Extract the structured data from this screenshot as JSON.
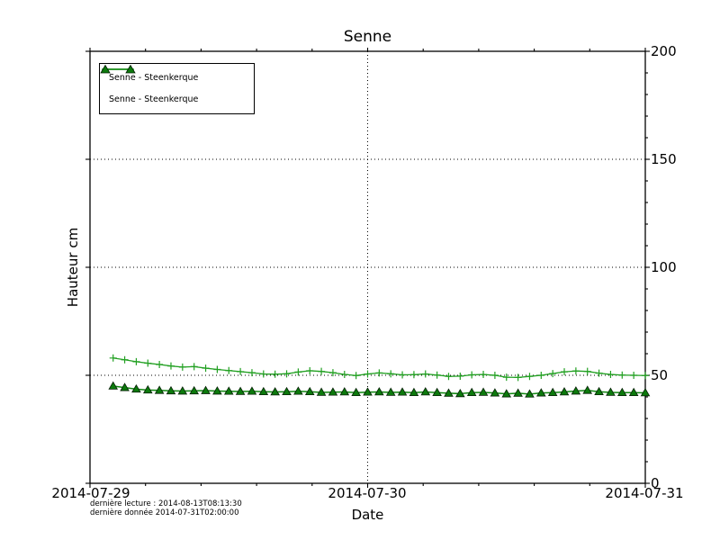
{
  "footer": {
    "line1": "dernière lecture : 2014-08-13T08:13:30",
    "line2": "dernière donnée  2014-07-31T02:00:00"
  },
  "colors": {
    "series1_line": "#22a022",
    "series2_line": "#128812",
    "series2_marker_fill": "#0c7a0c",
    "series2_marker_edge": "#051f05",
    "axis": "#000000",
    "background": "#ffffff"
  },
  "chart_data": {
    "type": "line",
    "title": "Senne",
    "xlabel": "Date",
    "ylabel": "Hauteur cm",
    "ylim": [
      0,
      200
    ],
    "yticks": [
      0,
      50,
      100,
      150,
      200
    ],
    "y_minor_tick_step": 10,
    "xtick_labels": [
      "2014-07-29",
      "2014-07-30",
      "2014-07-31"
    ],
    "xtick_hours": [
      0,
      24,
      48
    ],
    "x_minor_tick_hours": [
      4.8,
      9.6,
      14.4,
      19.2,
      28.8,
      33.6,
      38.4,
      43.2
    ],
    "x_range_hours": [
      0,
      48
    ],
    "x_start_hour": 2,
    "x_step_hours": 1,
    "grid": "dotted horizontal at 50,100,150 and vertical at 2014-07-30",
    "legend_position": "upper left",
    "series": [
      {
        "name": "Senne - Steenkerque",
        "marker": "plus",
        "color": "#22a022",
        "values": [
          58.0,
          57.2,
          56.3,
          55.6,
          55.0,
          54.3,
          53.8,
          54.0,
          53.3,
          52.7,
          52.2,
          51.7,
          51.2,
          50.6,
          50.5,
          50.7,
          51.5,
          52.1,
          51.8,
          51.2,
          50.4,
          49.9,
          50.6,
          51.1,
          50.7,
          50.2,
          50.3,
          50.6,
          50.1,
          49.5,
          49.6,
          50.2,
          50.4,
          50.0,
          49.1,
          49.0,
          49.5,
          50.0,
          50.8,
          51.6,
          52.0,
          51.8,
          51.0,
          50.4,
          50.1,
          50.0,
          49.9
        ]
      },
      {
        "name": "Senne - Steenkerque",
        "marker": "triangle",
        "color": "#128812",
        "marker_fill": "#0c7a0c",
        "values": [
          45.0,
          44.3,
          43.6,
          43.2,
          43.0,
          42.8,
          42.7,
          42.8,
          42.9,
          42.7,
          42.6,
          42.5,
          42.6,
          42.4,
          42.3,
          42.4,
          42.6,
          42.4,
          42.1,
          42.2,
          42.3,
          42.0,
          42.2,
          42.3,
          42.1,
          42.2,
          42.0,
          42.3,
          42.0,
          41.7,
          41.5,
          42.0,
          42.1,
          41.8,
          41.4,
          41.7,
          41.3,
          41.8,
          42.0,
          42.3,
          42.7,
          43.0,
          42.4,
          42.1,
          42.0,
          42.0,
          41.9
        ]
      }
    ]
  }
}
